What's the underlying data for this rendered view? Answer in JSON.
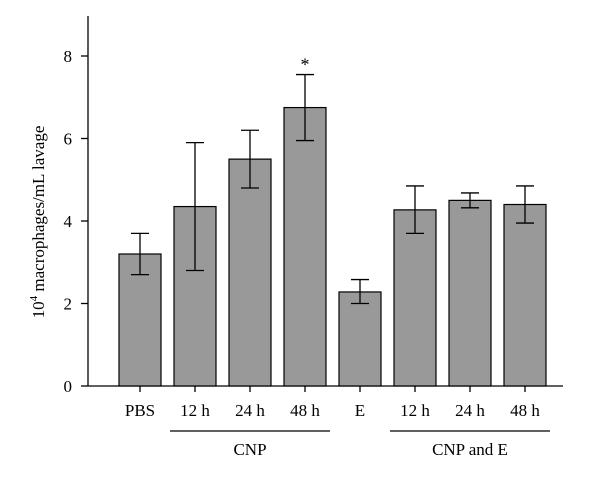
{
  "chart_data": {
    "type": "bar",
    "title": "",
    "ylabel_base": "10",
    "ylabel_exp": "4",
    "ylabel_rest": " macrophages/mL lavage",
    "ylim": [
      0,
      8
    ],
    "yticks": [
      0,
      2,
      4,
      6,
      8
    ],
    "categories": [
      "PBS",
      "12 h",
      "24 h",
      "48 h",
      "E",
      "12 h",
      "24 h",
      "48 h"
    ],
    "values": [
      3.2,
      4.35,
      5.5,
      6.75,
      2.28,
      4.27,
      4.5,
      4.4
    ],
    "error_low": [
      2.7,
      2.8,
      4.8,
      5.95,
      2.0,
      3.7,
      4.32,
      3.95
    ],
    "error_high": [
      3.7,
      5.9,
      6.2,
      7.55,
      2.58,
      4.85,
      4.68,
      4.85
    ],
    "annotations": [
      {
        "category_index": 3,
        "text": "*"
      }
    ],
    "groups": [
      {
        "label": "CNP",
        "from_index": 1,
        "to_index": 3
      },
      {
        "label": "CNP and E",
        "from_index": 5,
        "to_index": 7
      }
    ],
    "grid": false,
    "bar_color": "#999999"
  }
}
